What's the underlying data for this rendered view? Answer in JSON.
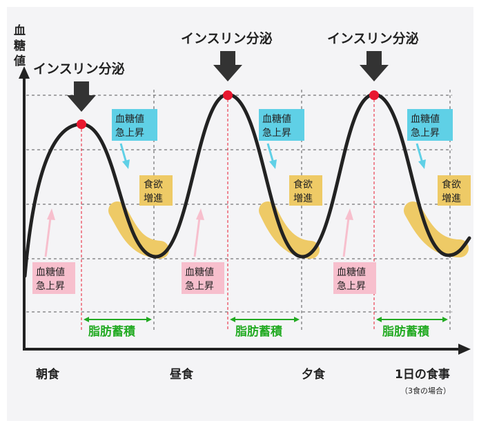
{
  "colors": {
    "background": "#f4f4f6",
    "curve": "#222222",
    "peak_marker": "#e8182f",
    "arrow_down": "#333333",
    "callout_blue": "#5fd0e6",
    "callout_pink": "#f7bfcd",
    "appetite_band": "#eeca66",
    "fat_storage": "#22aa22",
    "grid_dash": "#555555",
    "peak_dash": "#e8182f"
  },
  "axis": {
    "y_label_chars": [
      "血",
      "糖",
      "値"
    ],
    "meals": [
      "朝食",
      "昼食",
      "夕食",
      "1日の食事"
    ],
    "meals_note": "（3食の場合）"
  },
  "labels": {
    "insulin": "インスリン分泌",
    "spike": [
      "血糖値",
      "急上昇"
    ],
    "appetite": [
      "食欲",
      "増進"
    ],
    "fat": "脂肪蓄積"
  },
  "icons": {
    "down_arrow": "down-arrow-icon",
    "peak": "peak-dot-icon",
    "blue_arrow": "arrow-down-right-icon",
    "pink_arrow": "arrow-up-right-icon"
  }
}
